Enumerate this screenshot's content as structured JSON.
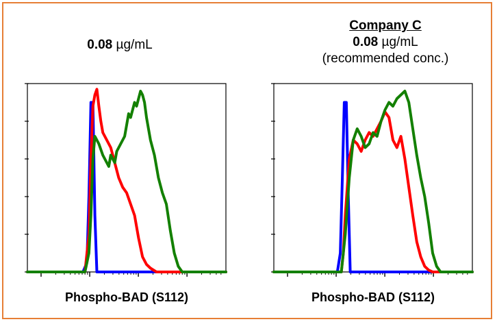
{
  "panels": [
    {
      "heading": "",
      "concentration_value": "0.08",
      "concentration_unit": "µg/mL",
      "note": "",
      "xlabel": "Phospho-BAD (S112)"
    },
    {
      "heading": "Company C",
      "concentration_value": "0.08",
      "concentration_unit": "µg/mL",
      "note": "(recommended conc.)",
      "xlabel": "Phospho-BAD (S112)"
    }
  ],
  "colors": {
    "frame": "#E67E35",
    "blue": "#0000FF",
    "red": "#FF0000",
    "green": "#138000"
  },
  "chart_data": [
    {
      "type": "line",
      "xlabel": "Phospho-BAD (S112)",
      "ylabel": "",
      "xlim": [
        0,
        100
      ],
      "ylim": [
        0,
        100
      ],
      "grid": false,
      "series": [
        {
          "color": "#0000FF",
          "x": [
            0,
            28,
            30,
            31,
            32,
            33,
            34,
            35,
            100
          ],
          "y": [
            0,
            0,
            5,
            40,
            90,
            90,
            30,
            0,
            0
          ]
        },
        {
          "color": "#FF0000",
          "x": [
            0,
            29,
            31,
            32,
            33,
            34,
            35,
            36,
            37,
            38,
            40,
            42,
            44,
            46,
            48,
            50,
            52,
            54,
            56,
            58,
            60,
            62,
            65,
            100
          ],
          "y": [
            0,
            0,
            20,
            60,
            88,
            94,
            97,
            88,
            80,
            74,
            70,
            66,
            58,
            50,
            45,
            42,
            36,
            30,
            18,
            8,
            4,
            2,
            0,
            0
          ]
        },
        {
          "color": "#138000",
          "x": [
            0,
            29,
            31,
            32,
            33,
            34,
            36,
            38,
            40,
            41,
            42,
            43,
            44,
            45,
            46,
            47,
            48,
            49,
            50,
            51,
            52,
            53,
            54,
            55,
            56,
            57,
            58,
            59,
            60,
            61,
            62,
            64,
            66,
            68,
            70,
            72,
            74,
            76,
            78,
            100
          ],
          "y": [
            0,
            0,
            10,
            30,
            60,
            72,
            68,
            62,
            58,
            56,
            62,
            60,
            58,
            64,
            66,
            68,
            70,
            72,
            78,
            84,
            82,
            86,
            90,
            88,
            92,
            96,
            94,
            90,
            82,
            76,
            70,
            62,
            50,
            42,
            36,
            22,
            10,
            3,
            0,
            0
          ]
        }
      ]
    },
    {
      "type": "line",
      "xlabel": "Phospho-BAD (S112)",
      "ylabel": "",
      "xlim": [
        0,
        100
      ],
      "ylim": [
        0,
        100
      ],
      "grid": false,
      "series": [
        {
          "color": "#0000FF",
          "x": [
            0,
            32,
            33.5,
            34.5,
            35.5,
            36.5,
            37.5,
            38.5,
            100
          ],
          "y": [
            0,
            0,
            10,
            50,
            90,
            90,
            40,
            0,
            0
          ]
        },
        {
          "color": "#FF0000",
          "x": [
            0,
            34,
            35,
            36,
            38,
            40,
            42,
            44,
            46,
            48,
            50,
            52,
            54,
            56,
            58,
            60,
            62,
            64,
            66,
            68,
            70,
            72,
            74,
            76,
            78,
            80,
            100
          ],
          "y": [
            0,
            0,
            10,
            30,
            60,
            70,
            68,
            64,
            70,
            74,
            72,
            76,
            80,
            85,
            82,
            70,
            66,
            72,
            60,
            45,
            30,
            16,
            8,
            3,
            1,
            0,
            0
          ]
        },
        {
          "color": "#138000",
          "x": [
            0,
            34,
            36,
            38,
            40,
            42,
            44,
            46,
            48,
            50,
            52,
            54,
            56,
            58,
            60,
            62,
            64,
            66,
            68,
            70,
            72,
            74,
            76,
            78,
            80,
            82,
            84,
            100
          ],
          "y": [
            0,
            0,
            20,
            50,
            70,
            76,
            72,
            66,
            68,
            74,
            72,
            80,
            86,
            90,
            88,
            92,
            94,
            96,
            90,
            76,
            62,
            50,
            40,
            26,
            10,
            3,
            0,
            0
          ]
        }
      ]
    }
  ]
}
